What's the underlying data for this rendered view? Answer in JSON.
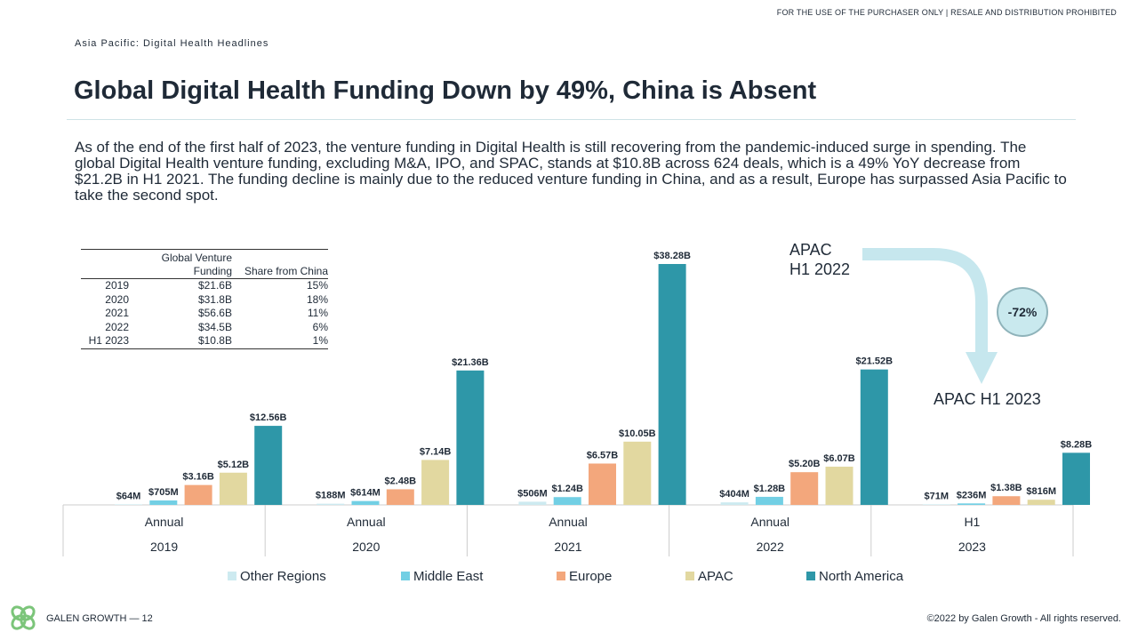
{
  "header": {
    "disclaimer": "FOR THE USE OF THE PURCHASER ONLY | RESALE AND DISTRIBUTION PROHIBITED",
    "section": "Asia Pacific: Digital Health Headlines",
    "title": "Global Digital Health Funding Down by 49%, China is Absent",
    "body": "As of the end of the first half of 2023, the venture funding in Digital Health is still recovering from the pandemic-induced surge in spending. The global Digital Health venture funding, excluding M&A, IPO, and SPAC, stands at $10.8B across 624 deals, which is a 49% YoY decrease from $21.2B in H1 2021. The funding decline is mainly due to the reduced venture funding in China, and as a result, Europe has surpassed Asia Pacific to take the second spot."
  },
  "table": {
    "headers": [
      "",
      "Global Venture Funding",
      "Share from China"
    ],
    "rows": [
      [
        "2019",
        "$21.6B",
        "15%"
      ],
      [
        "2020",
        "$31.8B",
        "18%"
      ],
      [
        "2021",
        "$56.6B",
        "11%"
      ],
      [
        "2022",
        "$34.5B",
        "6%"
      ],
      [
        "H1 2023",
        "$10.8B",
        "1%"
      ]
    ]
  },
  "annotation": {
    "from": "APAC H1 2022",
    "from_line1": "APAC",
    "from_line2": "H1 2022",
    "to": "APAC H1 2023",
    "change": "-72%",
    "arrow_color": "#c6e7ee"
  },
  "chart_data": {
    "type": "bar",
    "groups": [
      {
        "top": "Annual",
        "bottom": "2019"
      },
      {
        "top": "Annual",
        "bottom": "2020"
      },
      {
        "top": "Annual",
        "bottom": "2021"
      },
      {
        "top": "Annual",
        "bottom": "2022"
      },
      {
        "top": "H1",
        "bottom": "2023"
      }
    ],
    "series": [
      {
        "name": "Other Regions",
        "color": "#cdeaf0",
        "values": [
          0.064,
          0.188,
          0.506,
          0.404,
          0.071
        ],
        "labels": [
          "$64M",
          "$188M",
          "$506M",
          "$404M",
          "$71M"
        ]
      },
      {
        "name": "Middle East",
        "color": "#72cfe4",
        "values": [
          0.705,
          0.614,
          1.24,
          1.28,
          0.236
        ],
        "labels": [
          "$705M",
          "$614M",
          "$1.24B",
          "$1.28B",
          "$236M"
        ]
      },
      {
        "name": "Europe",
        "color": "#f3a77c",
        "values": [
          3.16,
          2.48,
          6.57,
          5.2,
          1.38
        ],
        "labels": [
          "$3.16B",
          "$2.48B",
          "$6.57B",
          "$5.20B",
          "$1.38B"
        ]
      },
      {
        "name": "APAC",
        "color": "#e2d8a0",
        "values": [
          5.12,
          7.14,
          10.05,
          6.07,
          0.816
        ],
        "labels": [
          "$5.12B",
          "$7.14B",
          "$10.05B",
          "$6.07B",
          "$816M"
        ]
      },
      {
        "name": "North America",
        "color": "#2e97a8",
        "values": [
          12.56,
          21.36,
          38.28,
          21.52,
          8.28
        ],
        "labels": [
          "$12.56B",
          "$21.36B",
          "$38.28B",
          "$21.52B",
          "$8.28B"
        ]
      }
    ],
    "unit": "$B",
    "ylim": [
      0,
      38.28
    ],
    "grid": false,
    "legend": "bottom"
  },
  "footer": {
    "brand": "GALEN GROWTH  —  12",
    "copyright": "©2022 by Galen Growth  - All rights reserved.",
    "logo_icon": "galen-growth-logo-icon"
  }
}
